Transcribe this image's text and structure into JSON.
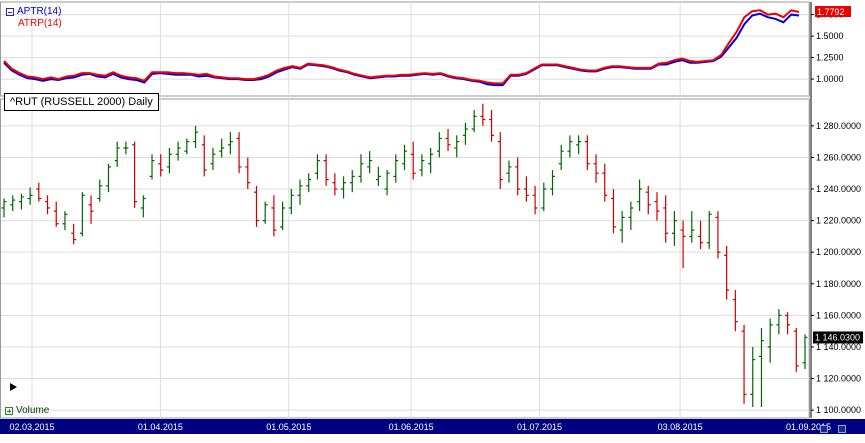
{
  "indicator": {
    "aptr_label": "APTR(14)",
    "atrp_label": "ATRP(14)",
    "aptr_color": "#0000dd",
    "atrp_color": "#ee0000",
    "last_value": "1.7792",
    "ticks": [
      "1.7500",
      "1.5000",
      "1.2500",
      "1.0000"
    ]
  },
  "price": {
    "title": "^RUT (RUSSELL 2000) Daily",
    "last_value": "1 146.0300",
    "ticks": [
      "1 280.0000",
      "1 260.0000",
      "1 240.0000",
      "1 220.0000",
      "1 200.0000",
      "1 180.0000",
      "1 160.0000",
      "1 140.0000",
      "1 120.0000",
      "1 100.0000"
    ],
    "up_color": "#006600",
    "down_color": "#cc0000"
  },
  "volume": {
    "label": "Volume"
  },
  "time_axis": {
    "labels": [
      "02.03.2015",
      "01.04.2015",
      "01.05.2015",
      "01.06.2015",
      "01.07.2015",
      "03.08.2015",
      "01.09.2015"
    ],
    "background": "#000080"
  },
  "chart_data": [
    {
      "type": "line",
      "title": "",
      "series": [
        {
          "name": "APTR(14)",
          "values": [
            1.19,
            1.1,
            1.05,
            1.01,
            1.0,
            0.98,
            1.0,
            0.99,
            1.01,
            1.02,
            1.05,
            1.06,
            1.03,
            1.02,
            1.06,
            1.02,
            1.0,
            0.99,
            0.96,
            1.06,
            1.07,
            1.06,
            1.05,
            1.05,
            1.05,
            1.03,
            1.04,
            1.02,
            1.01,
            1.0,
            1.0,
            0.99,
            0.99,
            1.0,
            1.03,
            1.08,
            1.11,
            1.14,
            1.12,
            1.17,
            1.16,
            1.15,
            1.13,
            1.1,
            1.08,
            1.05,
            1.03,
            1.01,
            1.02,
            1.03,
            1.03,
            1.04,
            1.04,
            1.05,
            1.06,
            1.05,
            1.06,
            1.03,
            1.01,
            1.0,
            0.98,
            0.97,
            0.94,
            0.93,
            0.93,
            1.04,
            1.04,
            1.06,
            1.11,
            1.16,
            1.16,
            1.16,
            1.14,
            1.12,
            1.1,
            1.09,
            1.09,
            1.12,
            1.14,
            1.14,
            1.13,
            1.12,
            1.12,
            1.12,
            1.17,
            1.17,
            1.2,
            1.22,
            1.19,
            1.19,
            1.2,
            1.21,
            1.26,
            1.37,
            1.48,
            1.64,
            1.74,
            1.76,
            1.72,
            1.7,
            1.66,
            1.75,
            1.74
          ]
        },
        {
          "name": "ATRP(14)",
          "values": [
            1.21,
            1.12,
            1.07,
            1.03,
            1.02,
            1.0,
            1.02,
            1.0,
            1.03,
            1.04,
            1.07,
            1.07,
            1.05,
            1.04,
            1.08,
            1.04,
            1.02,
            1.01,
            0.98,
            1.08,
            1.08,
            1.08,
            1.07,
            1.07,
            1.06,
            1.05,
            1.06,
            1.03,
            1.02,
            1.01,
            1.01,
            1.0,
            1.0,
            1.02,
            1.05,
            1.1,
            1.13,
            1.15,
            1.13,
            1.18,
            1.17,
            1.16,
            1.14,
            1.11,
            1.09,
            1.06,
            1.04,
            1.02,
            1.03,
            1.04,
            1.04,
            1.05,
            1.05,
            1.06,
            1.07,
            1.06,
            1.07,
            1.04,
            1.02,
            1.01,
            0.99,
            0.98,
            0.96,
            0.95,
            0.95,
            1.05,
            1.05,
            1.07,
            1.12,
            1.17,
            1.17,
            1.17,
            1.15,
            1.13,
            1.11,
            1.1,
            1.1,
            1.13,
            1.15,
            1.15,
            1.14,
            1.13,
            1.13,
            1.13,
            1.18,
            1.19,
            1.22,
            1.24,
            1.21,
            1.2,
            1.21,
            1.22,
            1.28,
            1.42,
            1.55,
            1.72,
            1.79,
            1.8,
            1.75,
            1.76,
            1.72,
            1.8,
            1.78
          ]
        }
      ],
      "ylim": [
        0.85,
        1.85
      ]
    },
    {
      "type": "ohlc",
      "title": "^RUT (RUSSELL 2000) Daily",
      "ylim": [
        1095,
        1297
      ],
      "bars": [
        {
          "o": 1228,
          "h": 1234,
          "l": 1222,
          "c": 1232
        },
        {
          "o": 1230,
          "h": 1236,
          "l": 1226,
          "c": 1233
        },
        {
          "o": 1232,
          "h": 1237,
          "l": 1227,
          "c": 1235
        },
        {
          "o": 1234,
          "h": 1241,
          "l": 1230,
          "c": 1236
        },
        {
          "o": 1240,
          "h": 1244,
          "l": 1232,
          "c": 1234
        },
        {
          "o": 1232,
          "h": 1236,
          "l": 1224,
          "c": 1228
        },
        {
          "o": 1226,
          "h": 1232,
          "l": 1216,
          "c": 1218
        },
        {
          "o": 1218,
          "h": 1226,
          "l": 1214,
          "c": 1224
        },
        {
          "o": 1212,
          "h": 1218,
          "l": 1205,
          "c": 1208
        },
        {
          "o": 1212,
          "h": 1238,
          "l": 1210,
          "c": 1236
        },
        {
          "o": 1230,
          "h": 1236,
          "l": 1218,
          "c": 1226
        },
        {
          "o": 1234,
          "h": 1246,
          "l": 1232,
          "c": 1242
        },
        {
          "o": 1242,
          "h": 1256,
          "l": 1238,
          "c": 1254
        },
        {
          "o": 1258,
          "h": 1270,
          "l": 1254,
          "c": 1266
        },
        {
          "o": 1266,
          "h": 1270,
          "l": 1262,
          "c": 1266
        },
        {
          "o": 1268,
          "h": 1270,
          "l": 1228,
          "c": 1232
        },
        {
          "o": 1228,
          "h": 1236,
          "l": 1222,
          "c": 1234
        },
        {
          "o": 1248,
          "h": 1262,
          "l": 1246,
          "c": 1258
        },
        {
          "o": 1256,
          "h": 1262,
          "l": 1248,
          "c": 1252
        },
        {
          "o": 1254,
          "h": 1266,
          "l": 1250,
          "c": 1262
        },
        {
          "o": 1262,
          "h": 1270,
          "l": 1258,
          "c": 1266
        },
        {
          "o": 1264,
          "h": 1272,
          "l": 1262,
          "c": 1270
        },
        {
          "o": 1270,
          "h": 1280,
          "l": 1266,
          "c": 1276
        },
        {
          "o": 1268,
          "h": 1274,
          "l": 1248,
          "c": 1252
        },
        {
          "o": 1256,
          "h": 1266,
          "l": 1252,
          "c": 1262
        },
        {
          "o": 1264,
          "h": 1272,
          "l": 1260,
          "c": 1266
        },
        {
          "o": 1268,
          "h": 1276,
          "l": 1262,
          "c": 1270
        },
        {
          "o": 1272,
          "h": 1276,
          "l": 1250,
          "c": 1254
        },
        {
          "o": 1254,
          "h": 1260,
          "l": 1240,
          "c": 1244
        },
        {
          "o": 1238,
          "h": 1242,
          "l": 1216,
          "c": 1220
        },
        {
          "o": 1220,
          "h": 1232,
          "l": 1218,
          "c": 1230
        },
        {
          "o": 1228,
          "h": 1236,
          "l": 1210,
          "c": 1214
        },
        {
          "o": 1216,
          "h": 1232,
          "l": 1214,
          "c": 1228
        },
        {
          "o": 1228,
          "h": 1240,
          "l": 1224,
          "c": 1236
        },
        {
          "o": 1236,
          "h": 1246,
          "l": 1230,
          "c": 1242
        },
        {
          "o": 1242,
          "h": 1250,
          "l": 1238,
          "c": 1246
        },
        {
          "o": 1250,
          "h": 1262,
          "l": 1246,
          "c": 1258
        },
        {
          "o": 1258,
          "h": 1262,
          "l": 1242,
          "c": 1246
        },
        {
          "o": 1244,
          "h": 1250,
          "l": 1236,
          "c": 1240
        },
        {
          "o": 1240,
          "h": 1248,
          "l": 1234,
          "c": 1244
        },
        {
          "o": 1244,
          "h": 1252,
          "l": 1238,
          "c": 1248
        },
        {
          "o": 1248,
          "h": 1262,
          "l": 1244,
          "c": 1256
        },
        {
          "o": 1254,
          "h": 1264,
          "l": 1250,
          "c": 1258
        },
        {
          "o": 1246,
          "h": 1254,
          "l": 1242,
          "c": 1248
        },
        {
          "o": 1240,
          "h": 1252,
          "l": 1236,
          "c": 1250
        },
        {
          "o": 1248,
          "h": 1262,
          "l": 1244,
          "c": 1258
        },
        {
          "o": 1256,
          "h": 1268,
          "l": 1252,
          "c": 1264
        },
        {
          "o": 1262,
          "h": 1270,
          "l": 1246,
          "c": 1250
        },
        {
          "o": 1252,
          "h": 1262,
          "l": 1248,
          "c": 1258
        },
        {
          "o": 1256,
          "h": 1266,
          "l": 1250,
          "c": 1262
        },
        {
          "o": 1264,
          "h": 1276,
          "l": 1260,
          "c": 1272
        },
        {
          "o": 1272,
          "h": 1278,
          "l": 1264,
          "c": 1268
        },
        {
          "o": 1266,
          "h": 1274,
          "l": 1260,
          "c": 1270
        },
        {
          "o": 1274,
          "h": 1282,
          "l": 1268,
          "c": 1278
        },
        {
          "o": 1278,
          "h": 1290,
          "l": 1276,
          "c": 1286
        },
        {
          "o": 1286,
          "h": 1294,
          "l": 1280,
          "c": 1284
        },
        {
          "o": 1284,
          "h": 1290,
          "l": 1270,
          "c": 1274
        },
        {
          "o": 1270,
          "h": 1276,
          "l": 1240,
          "c": 1246
        },
        {
          "o": 1250,
          "h": 1258,
          "l": 1244,
          "c": 1254
        },
        {
          "o": 1254,
          "h": 1260,
          "l": 1236,
          "c": 1240
        },
        {
          "o": 1240,
          "h": 1248,
          "l": 1232,
          "c": 1236
        },
        {
          "o": 1236,
          "h": 1242,
          "l": 1224,
          "c": 1228
        },
        {
          "o": 1228,
          "h": 1244,
          "l": 1226,
          "c": 1240
        },
        {
          "o": 1240,
          "h": 1252,
          "l": 1236,
          "c": 1248
        },
        {
          "o": 1256,
          "h": 1268,
          "l": 1252,
          "c": 1264
        },
        {
          "o": 1264,
          "h": 1274,
          "l": 1260,
          "c": 1270
        },
        {
          "o": 1268,
          "h": 1274,
          "l": 1262,
          "c": 1270
        },
        {
          "o": 1270,
          "h": 1274,
          "l": 1252,
          "c": 1256
        },
        {
          "o": 1256,
          "h": 1262,
          "l": 1244,
          "c": 1250
        },
        {
          "o": 1250,
          "h": 1256,
          "l": 1232,
          "c": 1236
        },
        {
          "o": 1234,
          "h": 1240,
          "l": 1212,
          "c": 1216
        },
        {
          "o": 1214,
          "h": 1226,
          "l": 1206,
          "c": 1222
        },
        {
          "o": 1222,
          "h": 1232,
          "l": 1214,
          "c": 1228
        },
        {
          "o": 1232,
          "h": 1246,
          "l": 1226,
          "c": 1240
        },
        {
          "o": 1238,
          "h": 1242,
          "l": 1224,
          "c": 1230
        },
        {
          "o": 1232,
          "h": 1238,
          "l": 1220,
          "c": 1226
        },
        {
          "o": 1228,
          "h": 1236,
          "l": 1206,
          "c": 1212
        },
        {
          "o": 1212,
          "h": 1226,
          "l": 1204,
          "c": 1220
        },
        {
          "o": 1214,
          "h": 1220,
          "l": 1190,
          "c": 1210
        },
        {
          "o": 1210,
          "h": 1226,
          "l": 1206,
          "c": 1214
        },
        {
          "o": 1210,
          "h": 1220,
          "l": 1202,
          "c": 1206
        },
        {
          "o": 1206,
          "h": 1226,
          "l": 1202,
          "c": 1224
        },
        {
          "o": 1222,
          "h": 1226,
          "l": 1196,
          "c": 1200
        },
        {
          "o": 1198,
          "h": 1204,
          "l": 1170,
          "c": 1176
        },
        {
          "o": 1170,
          "h": 1176,
          "l": 1150,
          "c": 1156
        },
        {
          "o": 1150,
          "h": 1154,
          "l": 1104,
          "c": 1110
        },
        {
          "o": 1110,
          "h": 1140,
          "l": 1102,
          "c": 1132
        },
        {
          "o": 1134,
          "h": 1152,
          "l": 1102,
          "c": 1144
        },
        {
          "o": 1140,
          "h": 1158,
          "l": 1130,
          "c": 1154
        },
        {
          "o": 1154,
          "h": 1164,
          "l": 1148,
          "c": 1160
        },
        {
          "o": 1160,
          "h": 1162,
          "l": 1148,
          "c": 1154
        },
        {
          "o": 1150,
          "h": 1152,
          "l": 1124,
          "c": 1128
        },
        {
          "o": 1130,
          "h": 1148,
          "l": 1126,
          "c": 1146
        }
      ]
    }
  ]
}
